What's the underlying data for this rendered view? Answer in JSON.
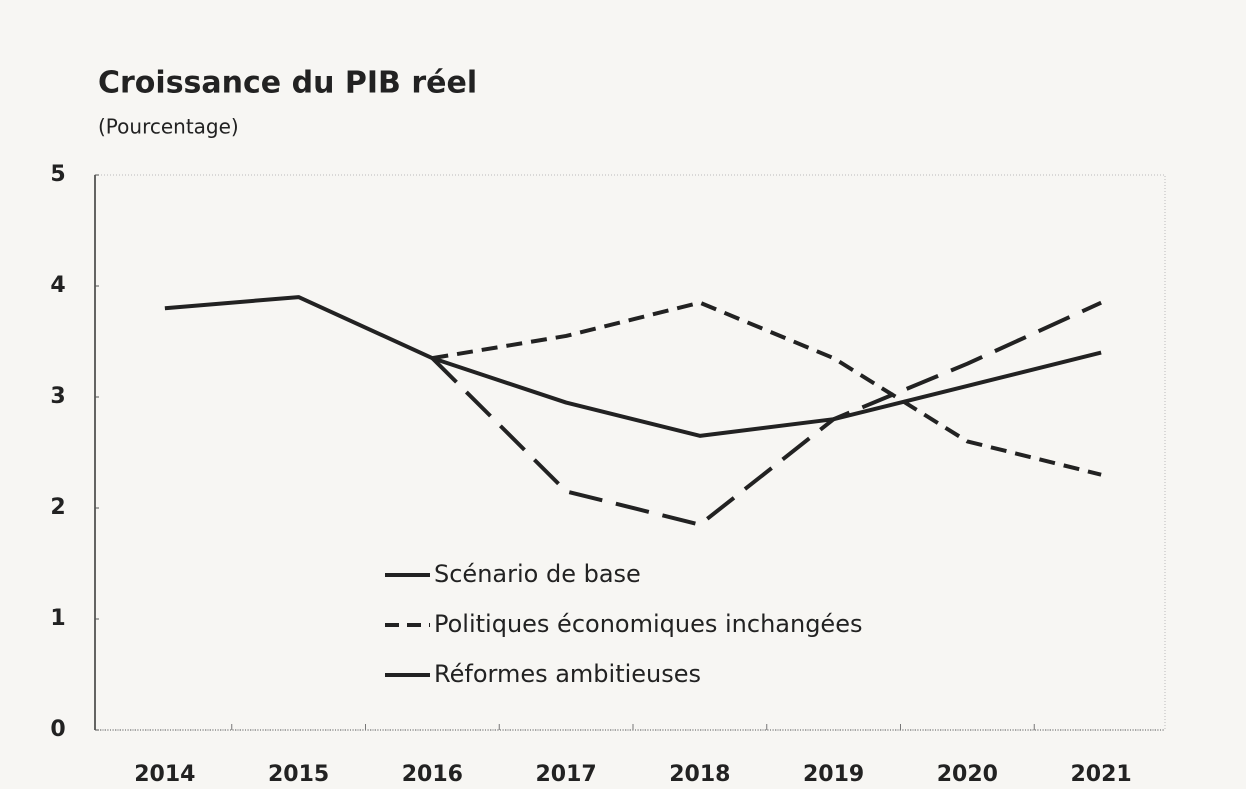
{
  "chart_data": {
    "type": "line",
    "title": "Croissance du PIB réel",
    "subtitle": "(Pourcentage)",
    "categories": [
      "2014",
      "2015",
      "2016",
      "2017",
      "2018",
      "2019",
      "2020",
      "2021"
    ],
    "series": [
      {
        "name": "Scénario de base",
        "color": "#222222",
        "line_style": "solid",
        "values": [
          3.8,
          3.9,
          3.35,
          2.95,
          2.65,
          2.8,
          3.1,
          3.4
        ]
      },
      {
        "name": "Politiques économiques inchangées",
        "color": "#222222",
        "line_style": "short-dash",
        "values": [
          null,
          null,
          3.35,
          3.55,
          3.85,
          3.35,
          2.6,
          2.3
        ]
      },
      {
        "name": "Réformes ambitieuses",
        "color": "#222222",
        "line_style": "long-dash",
        "values": [
          null,
          null,
          3.35,
          2.15,
          1.85,
          2.8,
          3.3,
          3.85
        ]
      }
    ],
    "ylim": [
      0,
      5
    ],
    "yticks": [
      0,
      1,
      2,
      3,
      4,
      5
    ],
    "grid": false
  }
}
